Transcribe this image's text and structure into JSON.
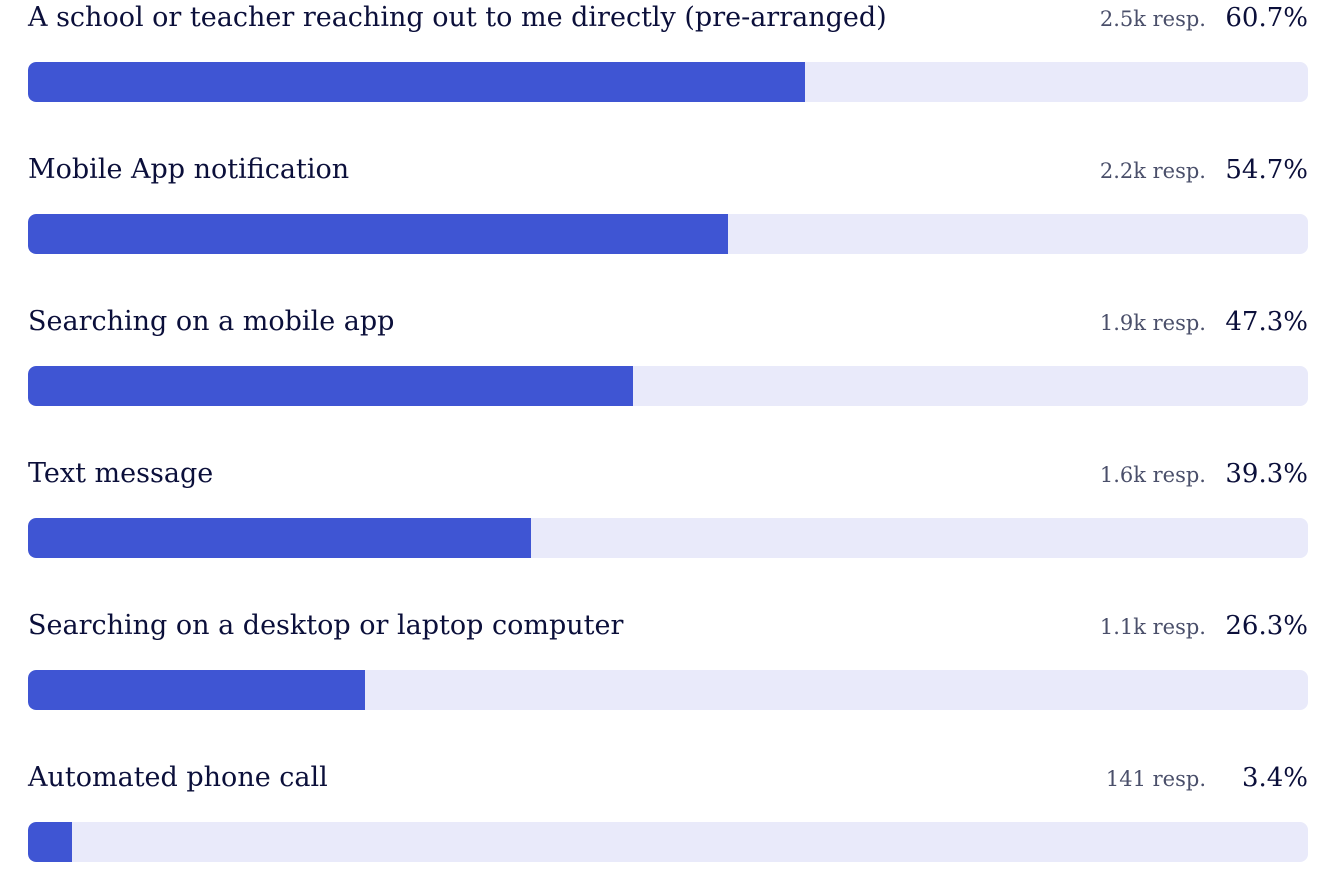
{
  "chart_data": {
    "type": "bar",
    "orientation": "horizontal",
    "title": "",
    "xlabel": "",
    "ylabel": "",
    "xlim": [
      0,
      100
    ],
    "bar_color": "#3f55d3",
    "track_color": "#e9eafa",
    "items": [
      {
        "label": "A school or teacher reaching out to me directly (pre-arranged)",
        "responses": "2.5k resp.",
        "percent_label": "60.7%",
        "value": 60.7
      },
      {
        "label": "Mobile App notification",
        "responses": "2.2k resp.",
        "percent_label": "54.7%",
        "value": 54.7
      },
      {
        "label": "Searching on a mobile app",
        "responses": "1.9k resp.",
        "percent_label": "47.3%",
        "value": 47.3
      },
      {
        "label": "Text message",
        "responses": "1.6k resp.",
        "percent_label": "39.3%",
        "value": 39.3
      },
      {
        "label": "Searching on a desktop or laptop computer",
        "responses": "1.1k resp.",
        "percent_label": "26.3%",
        "value": 26.3
      },
      {
        "label": "Automated phone call",
        "responses": "141 resp.",
        "percent_label": "3.4%",
        "value": 3.4
      }
    ]
  }
}
